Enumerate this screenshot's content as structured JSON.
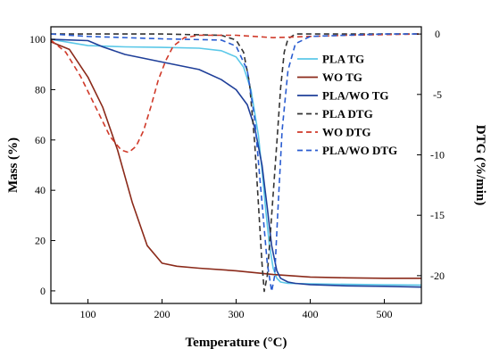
{
  "chart_data": {
    "type": "line",
    "xlabel": "Temperature (°C)",
    "ylabel": "Mass (%)",
    "y2label": "DTG (%/min)",
    "xlim": [
      50,
      550
    ],
    "ylim": [
      -5,
      105
    ],
    "y2lim": [
      -22.3,
      0.6
    ],
    "x_ticks": [
      100,
      200,
      300,
      400,
      500
    ],
    "y_ticks": [
      0,
      20,
      40,
      60,
      80,
      100
    ],
    "y2_ticks": [
      0,
      -5,
      -10,
      -15,
      -20
    ],
    "grid": false,
    "legend_position": "right",
    "series": [
      {
        "name": "PLA TG",
        "axis": "left",
        "color": "#5bc8e8",
        "dash": "solid",
        "x": [
          50,
          100,
          150,
          200,
          250,
          280,
          300,
          310,
          320,
          330,
          335,
          340,
          345,
          350,
          355,
          360,
          370,
          400,
          450,
          500,
          550
        ],
        "y": [
          100,
          97.5,
          97,
          96.8,
          96.5,
          95.5,
          93,
          89,
          80,
          62,
          48,
          32,
          18,
          9,
          5,
          3.5,
          3,
          2.8,
          2.6,
          2.4,
          2.3
        ]
      },
      {
        "name": "WO TG",
        "axis": "left",
        "color": "#8b2a1a",
        "dash": "solid",
        "x": [
          50,
          75,
          100,
          120,
          140,
          160,
          180,
          200,
          220,
          250,
          300,
          350,
          400,
          450,
          500,
          550
        ],
        "y": [
          99,
          96,
          85,
          73,
          56,
          35,
          18,
          11,
          9.8,
          9,
          8,
          6.5,
          5.5,
          5.2,
          5,
          5
        ]
      },
      {
        "name": "PLA/WO TG",
        "axis": "left",
        "color": "#1f3f99",
        "dash": "solid",
        "x": [
          50,
          100,
          120,
          150,
          200,
          250,
          280,
          300,
          315,
          325,
          335,
          342,
          348,
          355,
          360,
          370,
          380,
          400,
          450,
          500,
          550
        ],
        "y": [
          100,
          99.5,
          97,
          94,
          91,
          88,
          84,
          80,
          74,
          65,
          50,
          33,
          18,
          8,
          5,
          3.5,
          3,
          2.5,
          2,
          1.8,
          1.5
        ]
      },
      {
        "name": "PLA DTG",
        "axis": "right",
        "color": "#333333",
        "dash": "dashed",
        "x": [
          50,
          100,
          200,
          280,
          300,
          310,
          318,
          325,
          330,
          335,
          338,
          342,
          348,
          355,
          360,
          365,
          370,
          380,
          400,
          500,
          550
        ],
        "y": [
          0,
          0,
          0,
          -0.1,
          -0.5,
          -1.5,
          -4,
          -9,
          -14,
          -19,
          -21.3,
          -20,
          -15,
          -9,
          -4.5,
          -1.5,
          -0.4,
          0,
          0,
          0,
          0
        ]
      },
      {
        "name": "WO DTG",
        "axis": "right",
        "color": "#d03a2a",
        "dash": "dashed",
        "x": [
          50,
          70,
          90,
          110,
          130,
          145,
          155,
          165,
          175,
          185,
          195,
          205,
          215,
          230,
          250,
          300,
          350,
          400,
          450,
          500,
          550
        ],
        "y": [
          -0.5,
          -1.5,
          -3.5,
          -6,
          -8.5,
          -9.6,
          -9.8,
          -9.3,
          -8,
          -6,
          -3.8,
          -2.2,
          -1,
          -0.3,
          -0.1,
          -0.1,
          -0.3,
          -0.2,
          -0.1,
          -0.05,
          0
        ]
      },
      {
        "name": "PLA/WO DTG",
        "axis": "right",
        "color": "#2a5cd0",
        "dash": "dashed",
        "x": [
          50,
          100,
          200,
          280,
          300,
          315,
          325,
          335,
          342,
          348,
          352,
          356,
          362,
          370,
          380,
          400,
          500,
          550
        ],
        "y": [
          0,
          -0.2,
          -0.4,
          -0.5,
          -1,
          -3,
          -7,
          -14,
          -19,
          -21.3,
          -20,
          -15,
          -8,
          -3,
          -0.8,
          -0.2,
          0,
          0
        ]
      }
    ]
  }
}
